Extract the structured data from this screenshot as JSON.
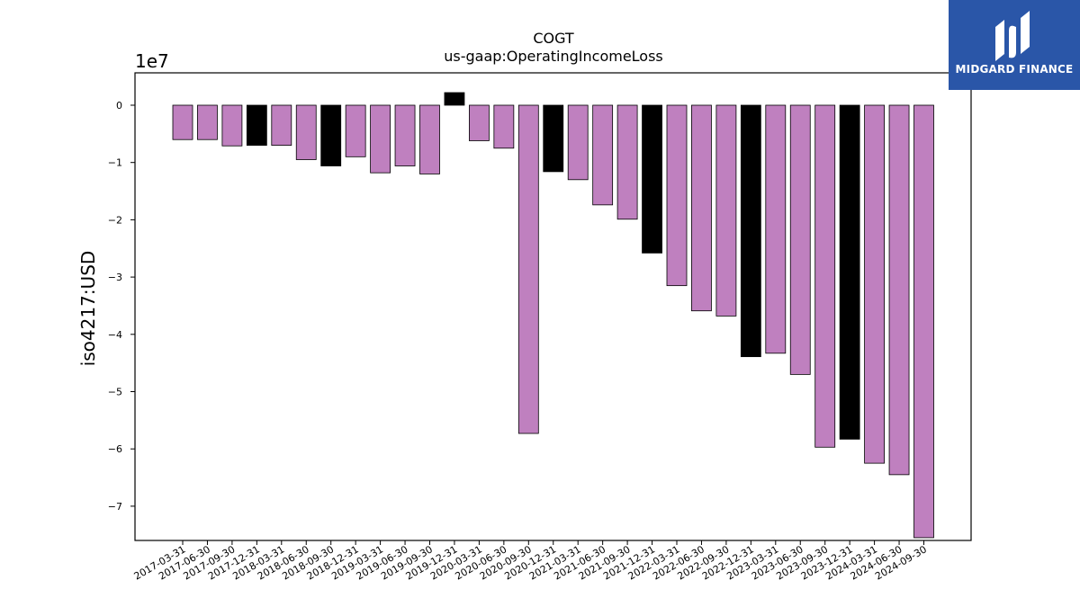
{
  "chart_data": {
    "type": "bar",
    "title": "COGT",
    "subtitle": "us-gaap:OperatingIncomeLoss",
    "ylabel": "iso4217:USD",
    "offset_label": "1e7",
    "ylim": [
      -7.6,
      0.55
    ],
    "yticks": [
      0,
      -1,
      -2,
      -3,
      -4,
      -5,
      -6,
      -7
    ],
    "ytick_labels": [
      "0",
      "−1",
      "−2",
      "−3",
      "−4",
      "−5",
      "−6",
      "−7"
    ],
    "colors": {
      "default": "#bf80bf",
      "highlight": "#000000"
    },
    "categories": [
      "2017-03-31",
      "2017-06-30",
      "2017-09-30",
      "2017-12-31",
      "2018-03-31",
      "2018-06-30",
      "2018-09-30",
      "2018-12-31",
      "2019-03-31",
      "2019-06-30",
      "2019-09-30",
      "2019-12-31",
      "2020-03-31",
      "2020-06-30",
      "2020-09-30",
      "2020-12-31",
      "2021-03-31",
      "2021-06-30",
      "2021-09-30",
      "2021-12-31",
      "2022-03-31",
      "2022-06-30",
      "2022-09-30",
      "2022-12-31",
      "2023-03-31",
      "2023-06-30",
      "2023-09-30",
      "2023-12-31",
      "2024-03-31",
      "2024-06-30",
      "2024-09-30"
    ],
    "values": [
      -0.6,
      -0.6,
      -0.71,
      -0.7,
      -0.7,
      -0.95,
      -1.06,
      -0.9,
      -1.18,
      -1.06,
      -1.2,
      0.22,
      -0.62,
      -0.75,
      -5.73,
      -1.16,
      -1.3,
      -1.74,
      -1.99,
      -2.58,
      -3.15,
      -3.59,
      -3.68,
      -4.39,
      -4.33,
      -4.7,
      -5.97,
      -5.83,
      -6.25,
      -6.45,
      -7.55
    ],
    "highlight": [
      false,
      false,
      false,
      true,
      false,
      false,
      true,
      false,
      false,
      false,
      false,
      true,
      false,
      false,
      false,
      true,
      false,
      false,
      false,
      true,
      false,
      false,
      false,
      true,
      false,
      false,
      false,
      true,
      false,
      false,
      false
    ]
  },
  "brand": {
    "name": "MIDGARD FINANCE",
    "background": "#2a56a8"
  }
}
